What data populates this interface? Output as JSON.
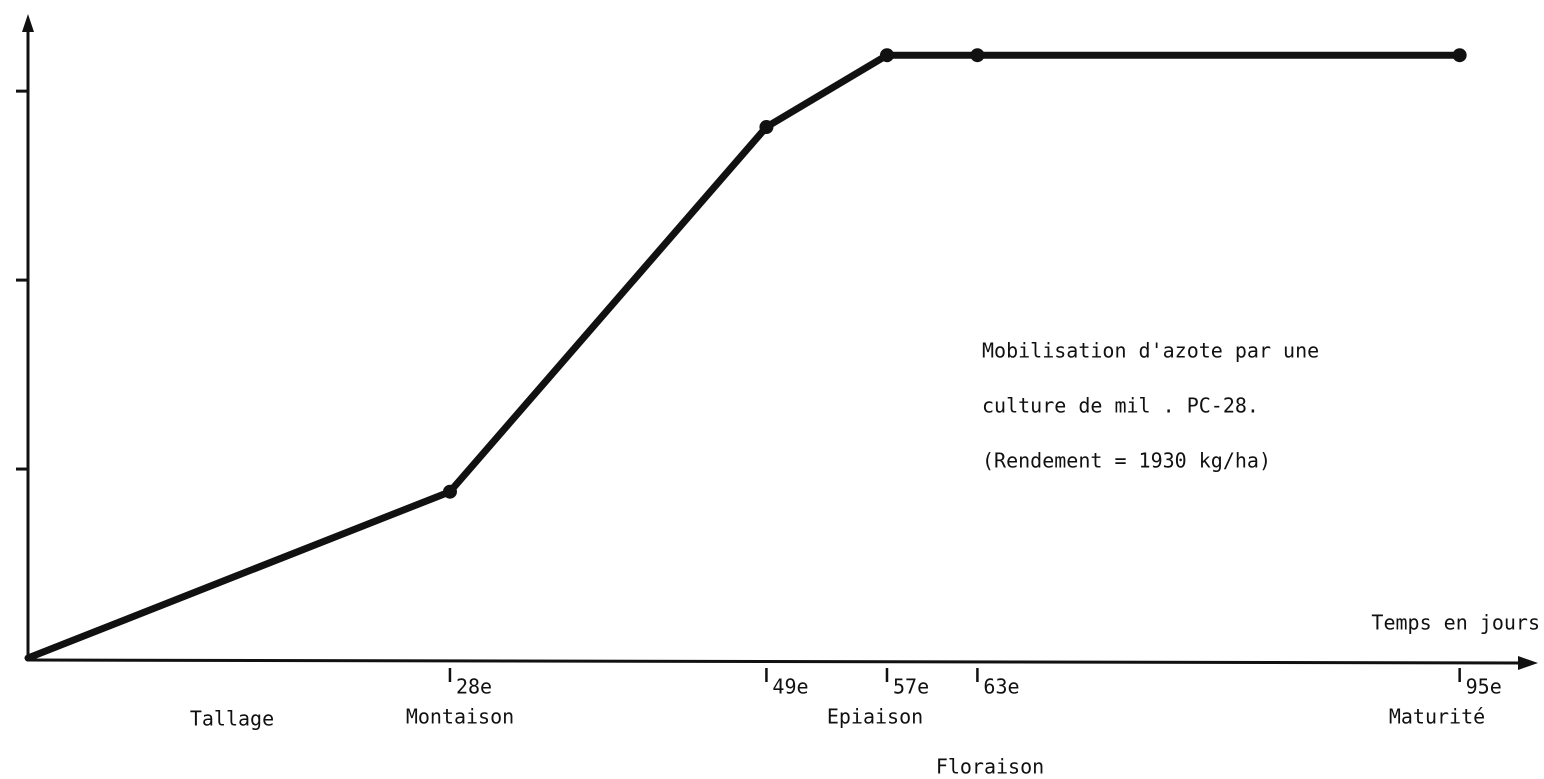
{
  "chart_data": {
    "type": "line",
    "x_label": "Temps en jours",
    "x": [
      0,
      28,
      49,
      57,
      63,
      95
    ],
    "series": [
      {
        "color": "#111111",
        "values": [
          0,
          0.88,
          2.81,
          3.19,
          3.19,
          3.19
        ]
      }
    ],
    "xlim": [
      0,
      100
    ],
    "xticks": [
      {
        "value": 28,
        "label": "28e"
      },
      {
        "value": 49,
        "label": "49e"
      },
      {
        "value": 57,
        "label": "57e"
      },
      {
        "value": 63,
        "label": "63e"
      },
      {
        "value": 95,
        "label": "95e"
      }
    ],
    "ylim": [
      0,
      3.35
    ],
    "yticks": [
      1,
      2,
      3
    ],
    "annotations": [
      "Tallage",
      "Montaison",
      "Epiaison",
      "Floraison",
      "Maturité"
    ],
    "note": [
      "Mobilisation d'azote par une",
      "culture de mil . PC-28.",
      "(Rendement = 1930 kg/ha)"
    ]
  }
}
